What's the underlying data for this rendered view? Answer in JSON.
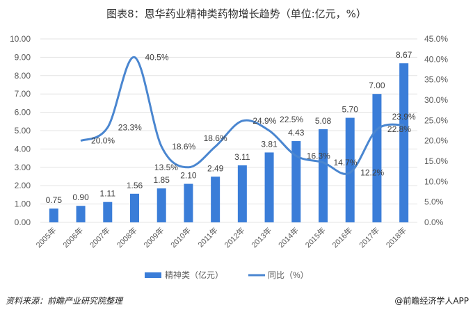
{
  "title": "图表8：恩华药业精神类药物增长趋势（单位:亿元，%）",
  "source": "资料来源：前瞻产业研究院整理",
  "brand": "@前瞻经济学人APP",
  "colors": {
    "bar": "#3A7DD8",
    "line": "#4A86D0",
    "grid": "#E3E3E3",
    "text": "#595959"
  },
  "chart_data": {
    "type": "bar+line",
    "categories": [
      "2005年",
      "2006年",
      "2007年",
      "2008年",
      "2009年",
      "2010年",
      "2011年",
      "2012年",
      "2013年",
      "2014年",
      "2015年",
      "2016年",
      "2017年",
      "2018年"
    ],
    "series": [
      {
        "name": "精神类（亿元）",
        "type": "bar",
        "axis": "left",
        "values": [
          0.75,
          0.9,
          1.11,
          1.56,
          1.85,
          2.1,
          2.49,
          3.11,
          3.81,
          4.43,
          5.08,
          5.7,
          7.0,
          8.67
        ],
        "labels": [
          "0.75",
          "0.90",
          "1.11",
          "1.56",
          "1.85",
          "2.10",
          "2.49",
          "3.11",
          "3.81",
          "4.43",
          "5.08",
          "5.70",
          "7.00",
          "8.67"
        ]
      },
      {
        "name": "同比（%）",
        "type": "line",
        "smooth": true,
        "axis": "right",
        "values": [
          null,
          20.0,
          23.3,
          40.5,
          18.6,
          13.5,
          18.6,
          24.9,
          22.5,
          16.3,
          14.7,
          12.2,
          22.8,
          23.9
        ],
        "labels": [
          "",
          "20.0%",
          "23.3%",
          "40.5%",
          "18.6%",
          "13.5%",
          "18.6%",
          "24.9%",
          "22.5%",
          "16.3%",
          "14.7%",
          "12.2%",
          "22.8%",
          "23.9%"
        ]
      }
    ],
    "y_left": {
      "range": [
        0,
        10
      ],
      "ticks": [
        "0.00",
        "1.00",
        "2.00",
        "3.00",
        "4.00",
        "5.00",
        "6.00",
        "7.00",
        "8.00",
        "9.00",
        "10.00"
      ]
    },
    "y_right": {
      "range": [
        0,
        45
      ],
      "ticks": [
        "0.0%",
        "5.0%",
        "10.0%",
        "15.0%",
        "20.0%",
        "25.0%",
        "30.0%",
        "35.0%",
        "40.0%",
        "45.0%"
      ]
    },
    "grid": true,
    "legend": "bottom",
    "legend_items": [
      "精神类（亿元）",
      "同比（%）"
    ]
  }
}
